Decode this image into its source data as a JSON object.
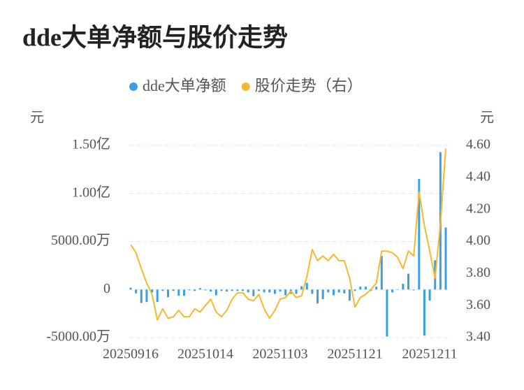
{
  "chart_data": {
    "type": "combo",
    "title": "dde大单净额与股价走势",
    "y_label": "元",
    "y2_label": "元",
    "categories": [
      "20250916",
      null,
      null,
      null,
      null,
      null,
      null,
      null,
      null,
      null,
      null,
      null,
      null,
      null,
      "20251014",
      null,
      null,
      null,
      null,
      null,
      null,
      null,
      null,
      null,
      null,
      null,
      null,
      null,
      "20251103",
      null,
      null,
      null,
      null,
      null,
      null,
      null,
      null,
      null,
      null,
      null,
      null,
      null,
      "20251121",
      null,
      null,
      null,
      null,
      null,
      null,
      null,
      null,
      null,
      null,
      null,
      null,
      null,
      "20251211",
      null,
      null,
      null
    ],
    "ylim": [
      -5000,
      15000
    ],
    "yticks": [
      {
        "value": -5000,
        "label": "-5000.00万"
      },
      0,
      {
        "value": 5000,
        "label": "5000.00万"
      },
      {
        "value": 10000,
        "label": "1.00亿"
      },
      {
        "value": 15000,
        "label": "1.50亿"
      }
    ],
    "y2lim": [
      3.4,
      4.6
    ],
    "y2ticks": [
      {
        "value": 3.4,
        "label": "3.40"
      },
      {
        "value": 3.6,
        "label": "3.60"
      },
      {
        "value": 3.8,
        "label": "3.80"
      },
      {
        "value": 4.0,
        "label": "4.00"
      },
      {
        "value": 4.2,
        "label": "4.20"
      },
      {
        "value": 4.4,
        "label": "4.40"
      },
      {
        "value": 4.6,
        "label": "4.60"
      }
    ],
    "grid": true,
    "series": [
      {
        "name": "dde大单净额",
        "type": "bar",
        "color": "#3a9fe3",
        "values": [
          200,
          -400,
          -1400,
          -1300,
          -300,
          -1300,
          -150,
          -800,
          -150,
          -650,
          -650,
          -80,
          -150,
          150,
          -80,
          -200,
          -600,
          -150,
          -200,
          -150,
          -150,
          -150,
          -300,
          -700,
          -150,
          -300,
          -300,
          -450,
          -200,
          -600,
          -450,
          -450,
          350,
          700,
          -450,
          -1450,
          -1000,
          -300,
          -600,
          -300,
          -400,
          -1150,
          -150,
          300,
          300,
          -150,
          300,
          3500,
          -4900,
          -300,
          0,
          600,
          1650,
          -80,
          11500,
          -4800,
          -1150,
          3050,
          14300,
          6450
        ]
      },
      {
        "name": "股价走势（右）",
        "type": "line",
        "axis": "y2",
        "color": "#f5b82e",
        "values": [
          3.98,
          3.93,
          3.83,
          3.74,
          3.67,
          3.51,
          3.58,
          3.52,
          3.53,
          3.57,
          3.53,
          3.53,
          3.58,
          3.56,
          3.6,
          3.64,
          3.56,
          3.53,
          3.57,
          3.64,
          3.68,
          3.68,
          3.64,
          3.63,
          3.67,
          3.58,
          3.52,
          3.57,
          3.64,
          3.65,
          3.69,
          3.65,
          3.66,
          3.78,
          3.95,
          3.88,
          3.91,
          3.88,
          3.92,
          3.88,
          3.88,
          3.77,
          3.59,
          3.65,
          3.67,
          3.7,
          3.74,
          3.94,
          3.94,
          3.93,
          3.9,
          3.83,
          3.94,
          3.91,
          4.31,
          4.1,
          3.94,
          3.77,
          4.11,
          4.58
        ]
      }
    ]
  }
}
